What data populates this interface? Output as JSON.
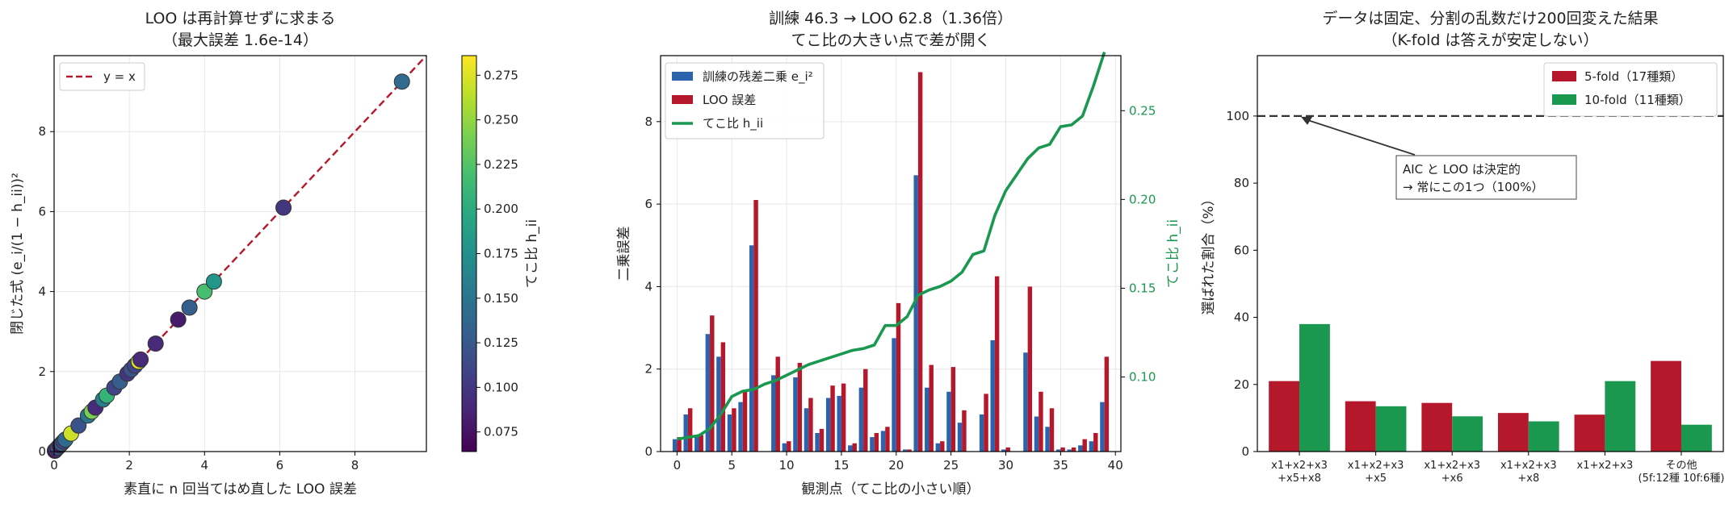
{
  "chart_data": [
    {
      "type": "scatter",
      "title_lines": [
        "LOO は再計算せずに求まる",
        "（最大誤差 1.6e-14）"
      ],
      "xlabel": "素直に n 回当てはめ直した LOO 誤差",
      "ylabel": "閉じた式 (e_i/(1 − h_ii))²",
      "xlim": [
        0,
        9.9
      ],
      "ylim": [
        0,
        9.9
      ],
      "xticks": [
        0,
        2,
        4,
        6,
        8
      ],
      "yticks": [
        0,
        2,
        4,
        6,
        8
      ],
      "legend": "y = x",
      "colorbar": {
        "label": "てこ比 h_ii",
        "min": 0.064,
        "max": 0.286,
        "ticks": [
          "0.075",
          "0.100",
          "0.125",
          "0.150",
          "0.175",
          "0.200",
          "0.225",
          "0.250",
          "0.275"
        ]
      },
      "points": [
        {
          "x": 0.02,
          "y": 0.02,
          "c": 0.07
        },
        {
          "x": 0.05,
          "y": 0.05,
          "c": 0.09
        },
        {
          "x": 0.1,
          "y": 0.1,
          "c": 0.12
        },
        {
          "x": 0.15,
          "y": 0.15,
          "c": 0.08
        },
        {
          "x": 0.2,
          "y": 0.2,
          "c": 0.13
        },
        {
          "x": 0.25,
          "y": 0.25,
          "c": 0.11
        },
        {
          "x": 0.3,
          "y": 0.3,
          "c": 0.14
        },
        {
          "x": 0.45,
          "y": 0.45,
          "c": 0.27
        },
        {
          "x": 0.65,
          "y": 0.65,
          "c": 0.12
        },
        {
          "x": 0.9,
          "y": 0.9,
          "c": 0.15
        },
        {
          "x": 1.0,
          "y": 1.0,
          "c": 0.24
        },
        {
          "x": 1.1,
          "y": 1.1,
          "c": 0.09
        },
        {
          "x": 1.3,
          "y": 1.3,
          "c": 0.16
        },
        {
          "x": 1.4,
          "y": 1.4,
          "c": 0.21
        },
        {
          "x": 1.6,
          "y": 1.6,
          "c": 0.11
        },
        {
          "x": 1.75,
          "y": 1.75,
          "c": 0.13
        },
        {
          "x": 1.95,
          "y": 1.95,
          "c": 0.1
        },
        {
          "x": 2.05,
          "y": 2.05,
          "c": 0.12
        },
        {
          "x": 2.15,
          "y": 2.15,
          "c": 0.11
        },
        {
          "x": 2.25,
          "y": 2.25,
          "c": 0.28
        },
        {
          "x": 2.3,
          "y": 2.3,
          "c": 0.09
        },
        {
          "x": 2.7,
          "y": 2.7,
          "c": 0.09
        },
        {
          "x": 3.3,
          "y": 3.3,
          "c": 0.08
        },
        {
          "x": 3.6,
          "y": 3.6,
          "c": 0.13
        },
        {
          "x": 4.0,
          "y": 4.0,
          "c": 0.22
        },
        {
          "x": 4.25,
          "y": 4.25,
          "c": 0.18
        },
        {
          "x": 6.1,
          "y": 6.1,
          "c": 0.1
        },
        {
          "x": 9.25,
          "y": 9.25,
          "c": 0.14
        }
      ]
    },
    {
      "type": "bar",
      "title_lines": [
        "訓練 46.3 → LOO 62.8（1.36倍）",
        "てこ比の大きい点で差が開く"
      ],
      "xlabel": "観測点（てこ比の小さい順）",
      "ylabel": "二乗誤差",
      "ylabel_right": "てこ比 h_ii",
      "xlim": [
        -1.5,
        40.5
      ],
      "ylim": [
        0,
        9.6
      ],
      "ylim_right": [
        0.058,
        0.281
      ],
      "xticks": [
        0,
        5,
        10,
        15,
        20,
        25,
        30,
        35,
        40
      ],
      "yticks": [
        0,
        2,
        4,
        6,
        8
      ],
      "yticks_right": [
        "0.10",
        "0.15",
        "0.20",
        "0.25"
      ],
      "legend": [
        "訓練の残差二乗 e_i²",
        "LOO 誤差",
        "てこ比 h_ii"
      ],
      "series": [
        {
          "name": "訓練の残差二乗",
          "color": "#2b64ad",
          "values": [
            0.3,
            0.9,
            0.35,
            2.85,
            2.3,
            0.9,
            1.2,
            5.0,
            0.0,
            1.85,
            0.2,
            1.8,
            1.05,
            0.45,
            1.3,
            1.35,
            0.15,
            1.55,
            0.35,
            0.5,
            2.75,
            0.05,
            6.7,
            1.55,
            0.2,
            1.45,
            0.7,
            0.0,
            0.9,
            2.7,
            0.05,
            0.0,
            2.4,
            0.85,
            0.6,
            0.05,
            0.05,
            0.15,
            0.25,
            1.2
          ]
        },
        {
          "name": "LOO 誤差",
          "color": "#b5182a",
          "values": [
            0.35,
            1.05,
            0.4,
            3.3,
            2.65,
            1.05,
            1.45,
            6.1,
            0.0,
            2.3,
            0.25,
            2.15,
            1.3,
            0.55,
            1.6,
            1.65,
            0.2,
            2.0,
            0.45,
            0.6,
            3.6,
            0.05,
            9.2,
            2.1,
            0.25,
            2.05,
            1.0,
            0.0,
            1.4,
            4.25,
            0.1,
            0.0,
            4.0,
            1.45,
            1.05,
            0.1,
            0.1,
            0.3,
            0.45,
            2.3
          ]
        }
      ],
      "leverage": {
        "name": "てこ比",
        "color": "#1a9850",
        "values": [
          0.065,
          0.066,
          0.067,
          0.071,
          0.079,
          0.089,
          0.092,
          0.093,
          0.096,
          0.098,
          0.101,
          0.104,
          0.107,
          0.109,
          0.111,
          0.113,
          0.115,
          0.116,
          0.118,
          0.129,
          0.129,
          0.134,
          0.146,
          0.149,
          0.151,
          0.154,
          0.159,
          0.169,
          0.171,
          0.191,
          0.205,
          0.214,
          0.223,
          0.229,
          0.231,
          0.241,
          0.242,
          0.247,
          0.264,
          0.283
        ]
      }
    },
    {
      "type": "bar",
      "title_lines": [
        "データは固定、分割の乱数だけ200回変えた結果",
        "（K-fold は答えが安定しない）"
      ],
      "ylabel": "選ばれた割合（%）",
      "ylim": [
        0,
        118
      ],
      "yticks": [
        0,
        20,
        40,
        60,
        80,
        100
      ],
      "categories": [
        [
          "x1+x2+x3",
          "+x5+x8"
        ],
        [
          "x1+x2+x3",
          "+x5"
        ],
        [
          "x1+x2+x3",
          "+x6"
        ],
        [
          "x1+x2+x3",
          "+x8"
        ],
        [
          "x1+x2+x3",
          ""
        ],
        [
          "その他",
          "(5f:12種 10f:6種)"
        ]
      ],
      "series": [
        {
          "name": "5-fold（17種類）",
          "color": "#b5182a",
          "values": [
            21.0,
            15.0,
            14.5,
            11.5,
            11.0,
            27.0
          ]
        },
        {
          "name": "10-fold（11種類）",
          "color": "#1a9850",
          "values": [
            38.0,
            13.5,
            10.5,
            9.0,
            21.0,
            8.0
          ]
        }
      ],
      "reference_line": 100,
      "annotation": [
        "AIC と LOO は決定的",
        "→ 常にこの1つ（100%）"
      ]
    }
  ]
}
